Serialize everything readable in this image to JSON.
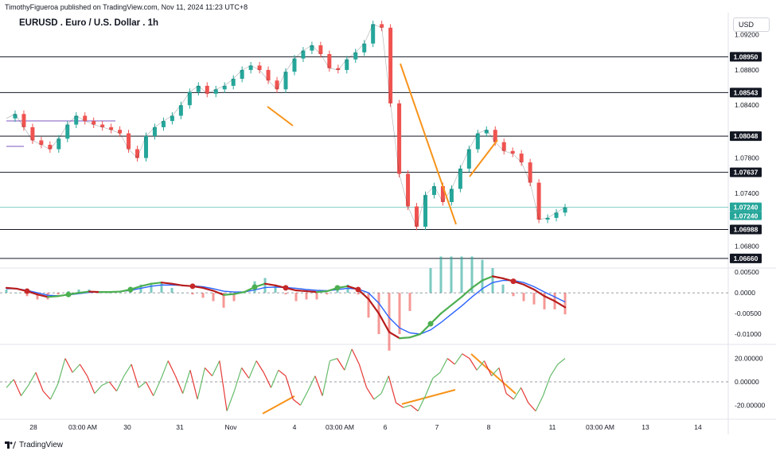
{
  "header": {
    "published_line": "TimothyFigueroa published on TradingView.com, Nov 11, 2024 11:23 UTC+8",
    "symbol_title": "EURUSD . Euro / U.S. Dollar . 1h",
    "currency_button": "USD"
  },
  "footer": {
    "brand": "TradingView"
  },
  "chart_data": [
    {
      "type": "line",
      "panel": "price",
      "title": "EURUSD . Euro / U.S. Dollar . 1h",
      "x_ticks": [
        "28",
        "03:00 AM",
        "30",
        "31",
        "Nov",
        "4",
        "03:00 AM",
        "6",
        "7",
        "8",
        "11",
        "03:00 AM",
        "13",
        "14"
      ],
      "y_ticks": [
        "1.09200",
        "1.08800",
        "1.08400",
        "1.07800",
        "1.07400",
        "1.06800"
      ],
      "ylim": [
        1.0655,
        1.0945
      ],
      "horizontal_levels": [
        "1.08950",
        "1.08543",
        "1.08048",
        "1.07637",
        "1.06988",
        "1.06660"
      ],
      "last_price_labels": [
        "1.07240",
        "1.07240"
      ],
      "series": [
        {
          "values": [
            1.0825,
            1.083,
            1.0815,
            1.08,
            1.0795,
            1.079,
            1.0802,
            1.0818,
            1.0828,
            1.0822,
            1.0818,
            1.0815,
            1.0812,
            1.0808,
            1.079,
            1.078,
            1.0805,
            1.0815,
            1.0822,
            1.0828,
            1.084,
            1.0855,
            1.0862,
            1.0853,
            1.0858,
            1.0862,
            1.087,
            1.088,
            1.0885,
            1.088,
            1.0868,
            1.0858,
            1.0878,
            1.0893,
            1.0902,
            1.0908,
            1.0898,
            1.0882,
            1.088,
            1.0892,
            1.09,
            1.091,
            1.0932,
            1.0928,
            1.0842,
            1.0762,
            1.0725,
            1.0702,
            1.0738,
            1.0748,
            1.073,
            1.0745,
            1.0768,
            1.079,
            1.0808,
            1.0812,
            1.0798,
            1.0788,
            1.0785,
            1.0775,
            1.0752,
            1.071,
            1.0712,
            1.0718,
            1.0724
          ]
        }
      ]
    },
    {
      "type": "line",
      "panel": "macd",
      "y_ticks": [
        "0.00500",
        "0.0000",
        "-0.00500",
        "-0.01000"
      ],
      "ylim": [
        -0.0125,
        0.006
      ],
      "series": [
        {
          "values": [
            0.0012,
            0.001,
            0.0004,
            -0.0004,
            -0.001,
            -0.0008,
            -0.0004,
            0.0,
            0.0003,
            0.0002,
            0.0002,
            0.0003,
            0.0008,
            0.0016,
            0.0022,
            0.0025,
            0.0022,
            0.0018,
            0.0016,
            0.0012,
            0.0005,
            -0.0005,
            -0.0003,
            0.0002,
            0.0014,
            0.0022,
            0.0018,
            0.0012,
            0.0006,
            0.0004,
            0.0002,
            0.0004,
            0.0012,
            0.0016,
            0.0008,
            -0.0015,
            -0.005,
            -0.0095,
            -0.011,
            -0.0108,
            -0.01,
            -0.0075,
            -0.005,
            -0.003,
            -0.001,
            0.0012,
            0.003,
            0.004,
            0.0035,
            0.0028,
            0.002,
            0.0008,
            -0.0008,
            -0.002,
            -0.0035
          ]
        },
        {
          "values": [
            0.001,
            0.001,
            0.0006,
            0.0,
            -0.0006,
            -0.0007,
            -0.0005,
            -0.0002,
            0.0001,
            0.0002,
            0.0002,
            0.0003,
            0.0006,
            0.0011,
            0.0016,
            0.0019,
            0.0019,
            0.0018,
            0.0017,
            0.0015,
            0.001,
            0.0004,
            0.0002,
            0.0002,
            0.0007,
            0.0013,
            0.0014,
            0.0013,
            0.0011,
            0.0008,
            0.0006,
            0.0005,
            0.0008,
            0.0011,
            0.0009,
            0.0,
            -0.0025,
            -0.006,
            -0.0085,
            -0.0097,
            -0.01,
            -0.009,
            -0.0072,
            -0.0052,
            -0.0032,
            -0.001,
            0.001,
            0.0025,
            0.003,
            0.003,
            0.0025,
            0.0015,
            0.0002,
            -0.001,
            -0.0022
          ]
        }
      ]
    },
    {
      "type": "line",
      "panel": "oscillator",
      "y_ticks": [
        "20.00000",
        "0.00000",
        "-20.00000"
      ],
      "ylim": [
        -32,
        32
      ],
      "series": [
        {
          "values": [
            -5,
            2,
            -12,
            -3,
            8,
            -8,
            -15,
            -2,
            20,
            8,
            15,
            5,
            -10,
            -3,
            0,
            -8,
            5,
            15,
            -5,
            0,
            -12,
            2,
            18,
            5,
            -10,
            10,
            -15,
            12,
            5,
            18,
            -25,
            -8,
            12,
            3,
            18,
            8,
            -5,
            10,
            5,
            -15,
            -20,
            -8,
            5,
            -12,
            18,
            20,
            10,
            28,
            15,
            -5,
            -15,
            -10,
            5,
            -18,
            -22,
            -20,
            -25,
            -12,
            3,
            8,
            20,
            15,
            24,
            20,
            10,
            18,
            5,
            12,
            -10,
            -15,
            -5,
            -18,
            -25,
            -12,
            5,
            15,
            20
          ]
        }
      ]
    }
  ]
}
